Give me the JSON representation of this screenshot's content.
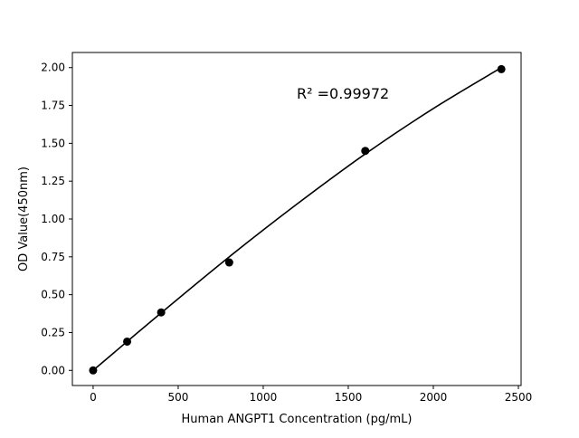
{
  "chart_data": {
    "type": "scatter",
    "title": "",
    "xlabel": "Human ANGPT1 Concentration (pg/mL)",
    "ylabel": "OD Value(450nm)",
    "xlim": [
      -122,
      2516
    ],
    "ylim": [
      -0.1,
      2.1
    ],
    "xticks": [
      0,
      500,
      1000,
      1500,
      2000,
      2500
    ],
    "yticks": [
      0.0,
      0.25,
      0.5,
      0.75,
      1.0,
      1.25,
      1.5,
      1.75,
      2.0
    ],
    "grid": false,
    "points": {
      "x": [
        0,
        200,
        400,
        800,
        1600,
        2400
      ],
      "y": [
        0.0,
        0.19,
        0.383,
        0.713,
        1.45,
        1.99
      ],
      "color": "#000000"
    },
    "fit_curve": {
      "x": [
        0,
        400,
        800,
        1200,
        1600,
        2000,
        2400
      ],
      "y": [
        0.0,
        0.38,
        0.75,
        1.1,
        1.43,
        1.73,
        2.0
      ],
      "color": "#000000"
    },
    "annotation": "R² =0.99972"
  }
}
